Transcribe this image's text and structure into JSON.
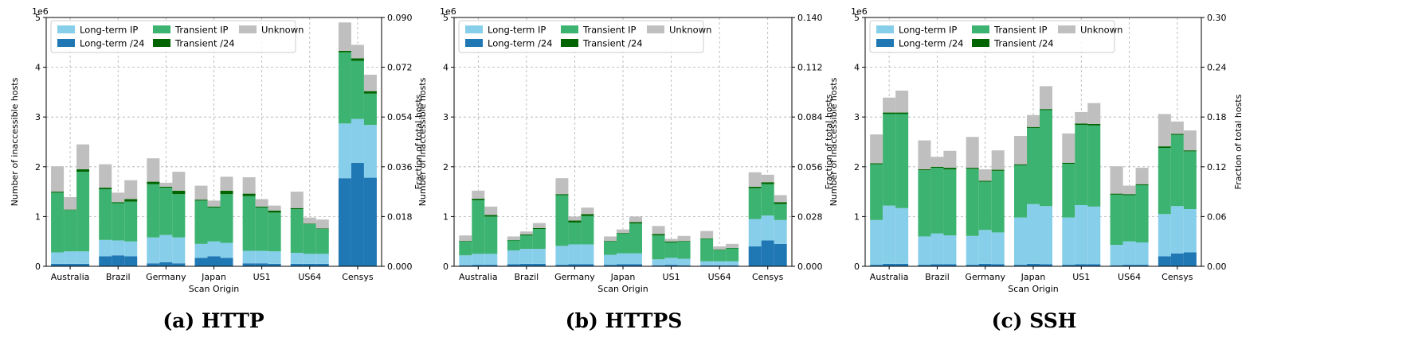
{
  "colors": {
    "long_term_ip": "#87ceeb",
    "long_term_24": "#1f77b4",
    "transient_ip": "#3cb371",
    "transient_24": "#006400",
    "unknown": "#bfbfbf"
  },
  "legend": {
    "long_term_ip": "Long-term IP",
    "long_term_24": "Long-term /24",
    "transient_ip": "Transient IP",
    "transient_24": "Transient /24",
    "unknown": "Unknown"
  },
  "chart_data": [
    {
      "type": "bar",
      "stacked": true,
      "caption": "(a) HTTP",
      "xlabel": "Scan Origin",
      "ylabel": "Number of inaccessible hosts",
      "ylabel_right": "Fraction of total hosts",
      "y_multiplier": "1e6",
      "ylim": [
        0,
        5
      ],
      "yticks": [
        "0",
        "1",
        "2",
        "3",
        "4",
        "5"
      ],
      "yticks_right": [
        "0.000",
        "0.018",
        "0.036",
        "0.054",
        "0.072",
        "0.090"
      ],
      "grid": true,
      "legend_position": "top-left",
      "categories": [
        "Australia",
        "Brazil",
        "Germany",
        "Japan",
        "US1",
        "US64",
        "Censys"
      ],
      "bars_per_category": 3,
      "stack_order": [
        "long_term_24",
        "long_term_ip",
        "transient_ip",
        "transient_24",
        "unknown"
      ],
      "series": {
        "long_term_24": [
          0.05,
          0.05,
          0.05,
          0.2,
          0.22,
          0.2,
          0.06,
          0.08,
          0.06,
          0.17,
          0.2,
          0.17,
          0.06,
          0.06,
          0.05,
          0.05,
          0.05,
          0.05,
          1.77,
          2.08,
          1.78
        ],
        "long_term_ip": [
          0.23,
          0.25,
          0.25,
          0.33,
          0.3,
          0.3,
          0.52,
          0.55,
          0.52,
          0.28,
          0.3,
          0.3,
          0.25,
          0.25,
          0.25,
          0.22,
          0.2,
          0.2,
          1.1,
          0.88,
          1.06
        ],
        "transient_ip": [
          1.2,
          0.83,
          1.6,
          1.02,
          0.75,
          0.8,
          1.07,
          0.95,
          0.87,
          0.87,
          0.68,
          0.98,
          1.1,
          0.87,
          0.78,
          0.88,
          0.6,
          0.5,
          1.43,
          1.17,
          0.63
        ],
        "transient_24": [
          0.02,
          0.01,
          0.05,
          0.03,
          0.02,
          0.05,
          0.05,
          0.02,
          0.07,
          0.02,
          0.02,
          0.07,
          0.05,
          0.02,
          0.04,
          0.02,
          0.01,
          0.01,
          0.03,
          0.05,
          0.05
        ],
        "unknown": [
          0.51,
          0.25,
          0.5,
          0.47,
          0.19,
          0.38,
          0.47,
          0.08,
          0.38,
          0.28,
          0.12,
          0.28,
          0.33,
          0.15,
          0.1,
          0.33,
          0.12,
          0.18,
          0.57,
          0.27,
          0.33
        ]
      }
    },
    {
      "type": "bar",
      "stacked": true,
      "caption": "(b) HTTPS",
      "xlabel": "Scan Origin",
      "ylabel": "Number of inaccessible hosts",
      "ylabel_right": "Fraction of total hosts",
      "y_multiplier": "1e6",
      "ylim": [
        0,
        5
      ],
      "yticks": [
        "0",
        "1",
        "2",
        "3",
        "4",
        "5"
      ],
      "yticks_right": [
        "0.000",
        "0.028",
        "0.056",
        "0.084",
        "0.112",
        "0.140"
      ],
      "grid": true,
      "legend_position": "top-left",
      "categories": [
        "Australia",
        "Brazil",
        "Germany",
        "Japan",
        "US1",
        "US64",
        "Censys"
      ],
      "bars_per_category": 3,
      "stack_order": [
        "long_term_24",
        "long_term_ip",
        "transient_ip",
        "transient_24",
        "unknown"
      ],
      "series": {
        "long_term_24": [
          0.02,
          0.03,
          0.03,
          0.04,
          0.05,
          0.05,
          0.03,
          0.04,
          0.04,
          0.03,
          0.04,
          0.04,
          0.02,
          0.03,
          0.02,
          0.02,
          0.02,
          0.02,
          0.4,
          0.52,
          0.45
        ],
        "long_term_ip": [
          0.2,
          0.22,
          0.22,
          0.28,
          0.3,
          0.3,
          0.38,
          0.4,
          0.4,
          0.2,
          0.22,
          0.22,
          0.12,
          0.14,
          0.13,
          0.08,
          0.08,
          0.08,
          0.55,
          0.5,
          0.48
        ],
        "transient_ip": [
          0.28,
          1.08,
          0.75,
          0.2,
          0.27,
          0.4,
          1.02,
          0.44,
          0.57,
          0.27,
          0.4,
          0.6,
          0.48,
          0.31,
          0.35,
          0.45,
          0.23,
          0.26,
          0.62,
          0.63,
          0.32
        ],
        "transient_24": [
          0.01,
          0.03,
          0.03,
          0.01,
          0.02,
          0.02,
          0.02,
          0.04,
          0.04,
          0.01,
          0.01,
          0.03,
          0.03,
          0.02,
          0.01,
          0.01,
          0.01,
          0.01,
          0.03,
          0.04,
          0.04
        ],
        "unknown": [
          0.11,
          0.16,
          0.17,
          0.07,
          0.06,
          0.1,
          0.32,
          0.08,
          0.13,
          0.09,
          0.07,
          0.11,
          0.16,
          0.05,
          0.1,
          0.15,
          0.06,
          0.08,
          0.29,
          0.15,
          0.14
        ]
      }
    },
    {
      "type": "bar",
      "stacked": true,
      "caption": "(c) SSH",
      "xlabel": "Scan Origin",
      "ylabel": "Number of inaccessible hosts",
      "ylabel_right": "Fraction of total hosts",
      "y_multiplier": "1e6",
      "ylim": [
        0,
        5
      ],
      "yticks": [
        "0",
        "1",
        "2",
        "3",
        "4",
        "5"
      ],
      "yticks_right": [
        "0.00",
        "0.06",
        "0.12",
        "0.18",
        "0.24",
        "0.30"
      ],
      "grid": true,
      "legend_position": "top-left",
      "categories": [
        "Australia",
        "Brazil",
        "Germany",
        "Japan",
        "US1",
        "US64",
        "Censys"
      ],
      "bars_per_category": 3,
      "stack_order": [
        "long_term_24",
        "long_term_ip",
        "transient_ip",
        "transient_24",
        "unknown"
      ],
      "series": {
        "long_term_24": [
          0.03,
          0.05,
          0.05,
          0.03,
          0.04,
          0.04,
          0.03,
          0.05,
          0.04,
          0.03,
          0.05,
          0.04,
          0.03,
          0.04,
          0.04,
          0.02,
          0.03,
          0.03,
          0.2,
          0.26,
          0.28
        ],
        "long_term_ip": [
          0.9,
          1.17,
          1.12,
          0.57,
          0.62,
          0.58,
          0.58,
          0.68,
          0.64,
          0.95,
          1.2,
          1.17,
          0.95,
          1.19,
          1.16,
          0.41,
          0.47,
          0.45,
          0.85,
          0.95,
          0.87
        ],
        "transient_ip": [
          1.12,
          1.84,
          1.89,
          1.33,
          1.32,
          1.33,
          1.35,
          0.97,
          1.24,
          1.05,
          1.53,
          1.93,
          1.08,
          1.61,
          1.63,
          1.01,
          0.93,
          1.15,
          1.33,
          1.43,
          1.16
        ],
        "transient_24": [
          0.02,
          0.03,
          0.03,
          0.02,
          0.02,
          0.03,
          0.02,
          0.02,
          0.02,
          0.02,
          0.02,
          0.02,
          0.02,
          0.03,
          0.03,
          0.02,
          0.02,
          0.02,
          0.03,
          0.02,
          0.02
        ],
        "unknown": [
          0.58,
          0.3,
          0.44,
          0.58,
          0.2,
          0.34,
          0.62,
          0.23,
          0.39,
          0.57,
          0.24,
          0.46,
          0.59,
          0.23,
          0.42,
          0.55,
          0.17,
          0.33,
          0.65,
          0.25,
          0.4
        ]
      }
    }
  ]
}
